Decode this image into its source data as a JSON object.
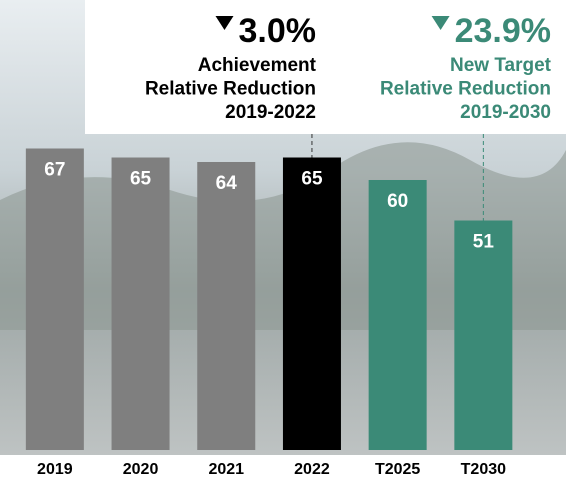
{
  "chart_data": {
    "type": "bar",
    "categories": [
      "2019",
      "2020",
      "2021",
      "2022",
      "T2025",
      "T2030"
    ],
    "values": [
      67,
      65,
      64,
      65,
      60,
      51
    ],
    "colors": [
      "#7f7f7f",
      "#7f7f7f",
      "#7f7f7f",
      "#000000",
      "#3b8a77",
      "#3b8a77"
    ],
    "annotations": [
      {
        "headline": "3.0%",
        "text": [
          "Achievement",
          "Relative Reduction",
          "2019-2022"
        ],
        "color": "#000000",
        "category": 3
      },
      {
        "headline": "23.9%",
        "text": [
          "New Target",
          "Relative Reduction",
          "2019-2030"
        ],
        "color": "#3b8a77",
        "category": 5
      }
    ]
  }
}
